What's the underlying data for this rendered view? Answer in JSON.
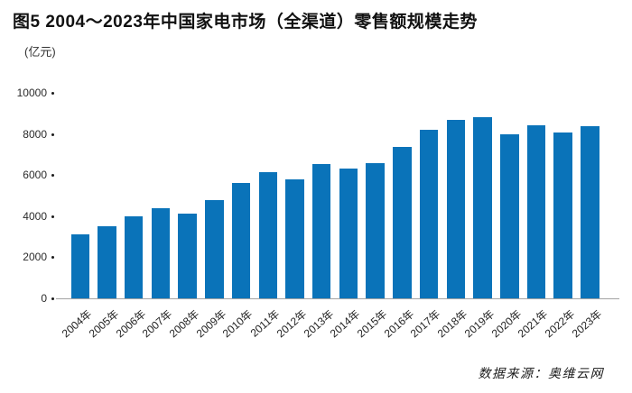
{
  "header": {
    "title": "图5 2004～2023年中国家电市场（全渠道）零售额规模走势"
  },
  "chart_data": {
    "type": "bar",
    "title": "图5 2004～2023年中国家电市场（全渠道）零售额规模走势",
    "unit_label": "(亿元)",
    "xlabel": "",
    "ylabel": "(亿元)",
    "categories": [
      "2004年",
      "2005年",
      "2006年",
      "2007年",
      "2008年",
      "2009年",
      "2010年",
      "2011年",
      "2012年",
      "2013年",
      "2014年",
      "2015年",
      "2016年",
      "2017年",
      "2018年",
      "2019年",
      "2020年",
      "2021年",
      "2022年",
      "2023年"
    ],
    "values": [
      3150,
      3550,
      4000,
      4400,
      4150,
      4800,
      5650,
      6150,
      5800,
      6550,
      6350,
      6600,
      7400,
      8250,
      8700,
      8850,
      8000,
      8450,
      8100,
      8400
    ],
    "ylim": [
      0,
      10000
    ],
    "yticks": [
      0,
      2000,
      4000,
      6000,
      8000,
      10000
    ],
    "grid": false,
    "legend": false,
    "bar_color": "#0A73B9",
    "axis_color": "#A3A3A3"
  },
  "source": {
    "text": "数据来源：奥维云网"
  }
}
